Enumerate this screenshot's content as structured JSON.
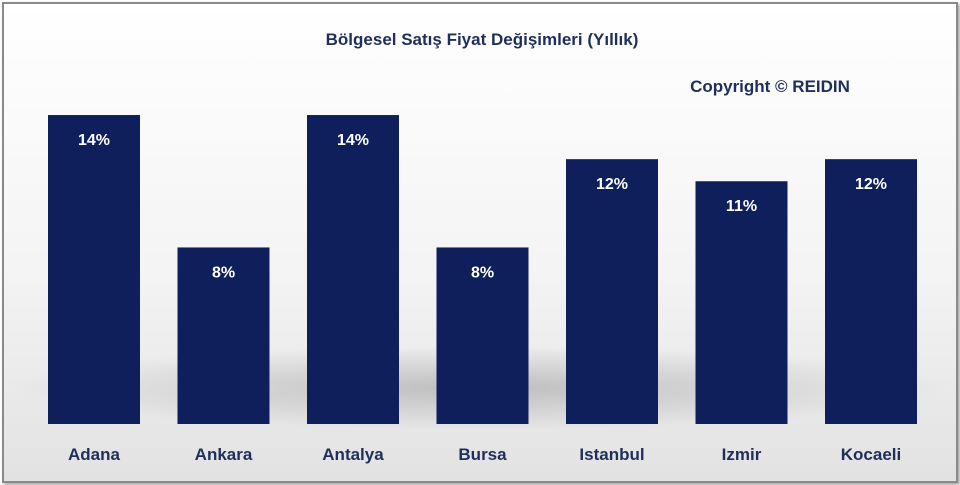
{
  "chart_data": {
    "type": "bar",
    "title": "Bölgesel Satış Fiyat Değişimleri (Yıllık)",
    "annotation": "Copyright © REIDIN",
    "categories": [
      "Adana",
      "Ankara",
      "Antalya",
      "Bursa",
      "Istanbul",
      "Izmir",
      "Kocaeli"
    ],
    "values": [
      14,
      8,
      14,
      8,
      12,
      11,
      12
    ],
    "value_labels": [
      "14%",
      "8%",
      "14%",
      "8%",
      "12%",
      "11%",
      "12%"
    ],
    "ylim": [
      0,
      14.5
    ],
    "grid": false,
    "legend": "none",
    "bar_color": "#0f1f5c"
  }
}
